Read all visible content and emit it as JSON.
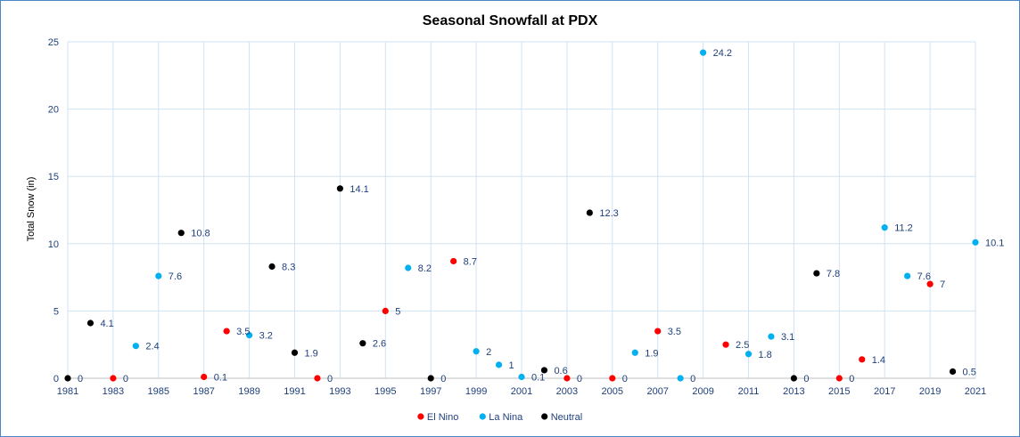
{
  "chart_data": {
    "type": "scatter",
    "title": "Seasonal Snowfall at PDX",
    "xlabel": "",
    "ylabel": "Total Snow (in)",
    "xlim": [
      1981,
      2021
    ],
    "ylim": [
      0,
      25
    ],
    "x_ticks": [
      1981,
      1983,
      1985,
      1987,
      1989,
      1991,
      1993,
      1995,
      1997,
      1999,
      2001,
      2003,
      2005,
      2007,
      2009,
      2011,
      2013,
      2015,
      2017,
      2019,
      2021
    ],
    "y_ticks": [
      0,
      5,
      10,
      15,
      20,
      25
    ],
    "grid": "vertical and horizontal",
    "legend_position": "bottom",
    "series": [
      {
        "name": "El Nino",
        "color": "#ff0000",
        "points": [
          {
            "x": 1983,
            "y": 0,
            "label": "0"
          },
          {
            "x": 1987,
            "y": 0.1,
            "label": "0.1"
          },
          {
            "x": 1988,
            "y": 3.5,
            "label": "3.5"
          },
          {
            "x": 1992,
            "y": 0,
            "label": "0"
          },
          {
            "x": 1995,
            "y": 5,
            "label": "5"
          },
          {
            "x": 1998,
            "y": 8.7,
            "label": "8.7"
          },
          {
            "x": 2003,
            "y": 0,
            "label": "0"
          },
          {
            "x": 2005,
            "y": 0,
            "label": "0"
          },
          {
            "x": 2007,
            "y": 3.5,
            "label": "3.5"
          },
          {
            "x": 2010,
            "y": 2.5,
            "label": "2.5"
          },
          {
            "x": 2015,
            "y": 0,
            "label": "0"
          },
          {
            "x": 2016,
            "y": 1.4,
            "label": "1.4"
          },
          {
            "x": 2019,
            "y": 7,
            "label": "7"
          }
        ]
      },
      {
        "name": "La Nina",
        "color": "#00b0f0",
        "points": [
          {
            "x": 1984,
            "y": 2.4,
            "label": "2.4"
          },
          {
            "x": 1985,
            "y": 7.6,
            "label": "7.6"
          },
          {
            "x": 1989,
            "y": 3.2,
            "label": "3.2"
          },
          {
            "x": 1996,
            "y": 8.2,
            "label": "8.2"
          },
          {
            "x": 1999,
            "y": 2,
            "label": "2"
          },
          {
            "x": 2000,
            "y": 1,
            "label": "1"
          },
          {
            "x": 2001,
            "y": 0.1,
            "label": "0.1"
          },
          {
            "x": 2006,
            "y": 1.9,
            "label": "1.9"
          },
          {
            "x": 2008,
            "y": 0,
            "label": "0"
          },
          {
            "x": 2009,
            "y": 24.2,
            "label": "24.2"
          },
          {
            "x": 2011,
            "y": 1.8,
            "label": "1.8"
          },
          {
            "x": 2012,
            "y": 3.1,
            "label": "3.1"
          },
          {
            "x": 2017,
            "y": 11.2,
            "label": "11.2"
          },
          {
            "x": 2018,
            "y": 7.6,
            "label": "7.6"
          },
          {
            "x": 2021,
            "y": 10.1,
            "label": "10.1"
          }
        ]
      },
      {
        "name": "Neutral",
        "color": "#000000",
        "points": [
          {
            "x": 1981,
            "y": 0,
            "label": "0"
          },
          {
            "x": 1982,
            "y": 4.1,
            "label": "4.1"
          },
          {
            "x": 1986,
            "y": 10.8,
            "label": "10.8"
          },
          {
            "x": 1990,
            "y": 8.3,
            "label": "8.3"
          },
          {
            "x": 1991,
            "y": 1.9,
            "label": "1.9"
          },
          {
            "x": 1993,
            "y": 14.1,
            "label": "14.1"
          },
          {
            "x": 1994,
            "y": 2.6,
            "label": "2.6"
          },
          {
            "x": 1997,
            "y": 0,
            "label": "0"
          },
          {
            "x": 2002,
            "y": 0.6,
            "label": "0.6"
          },
          {
            "x": 2004,
            "y": 12.3,
            "label": "12.3"
          },
          {
            "x": 2013,
            "y": 0,
            "label": "0"
          },
          {
            "x": 2014,
            "y": 7.8,
            "label": "7.8"
          },
          {
            "x": 2020,
            "y": 0.5,
            "label": "0.5"
          }
        ]
      }
    ]
  }
}
